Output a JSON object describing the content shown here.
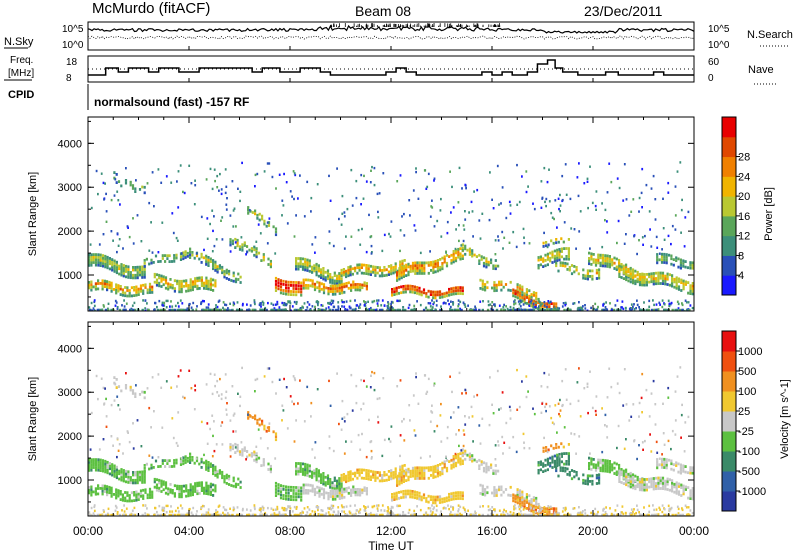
{
  "header": {
    "station": "McMurdo (fitACF)",
    "beam": "Beam 08",
    "date": "23/Dec/2011"
  },
  "noise_panel": {
    "left_label": "N.Sky",
    "right_label": "N.Search",
    "ticks_left": [
      "10^5",
      "10^0"
    ],
    "ticks_right": [
      "10^5",
      "10^0"
    ]
  },
  "freq_panel": {
    "left_label_1": "Freq.",
    "left_label_2": "[MHz]",
    "right_label": "Nave",
    "ticks_left": [
      "18",
      "8"
    ],
    "ticks_right": [
      "60",
      "0"
    ]
  },
  "cpid_panel": {
    "label": "CPID",
    "text": "normalsound (fast) -157 RF"
  },
  "time_axis": {
    "label": "Time UT",
    "ticks": [
      "00:00",
      "04:00",
      "08:00",
      "12:00",
      "16:00",
      "20:00",
      "00:00"
    ]
  },
  "chart_data": [
    {
      "type": "heatmap",
      "title": "",
      "ylabel": "Slant Range [km]",
      "xlabel": "Time UT",
      "ylim": [
        180,
        4600
      ],
      "yticks": [
        "1000",
        "2000",
        "3000",
        "4000"
      ],
      "colorbar_label": "Power [dB]",
      "colorbar_ticks": [
        "4",
        "8",
        "12",
        "16",
        "20",
        "24",
        "28"
      ],
      "colorbar_colors": [
        "#1a1aff",
        "#2950b8",
        "#3c8f7a",
        "#5aa65a",
        "#b9c832",
        "#f0b400",
        "#f08000",
        "#e04800",
        "#e80000"
      ]
    },
    {
      "type": "heatmap",
      "title": "",
      "ylabel": "Slant Range [km]",
      "xlabel": "Time UT",
      "ylim": [
        180,
        4600
      ],
      "yticks": [
        "1000",
        "2000",
        "3000",
        "4000"
      ],
      "colorbar_label": "Velocity [m s^-1]",
      "colorbar_ticks": [
        "1000",
        "500",
        "100",
        "25",
        "-25",
        "-100",
        "-500",
        "-1000"
      ],
      "colorbar_colors": [
        "#2a3aa0",
        "#3060a8",
        "#3a8a68",
        "#5cc040",
        "#c8c8c8",
        "#f0c830",
        "#f09020",
        "#f05010",
        "#e81010"
      ]
    }
  ]
}
